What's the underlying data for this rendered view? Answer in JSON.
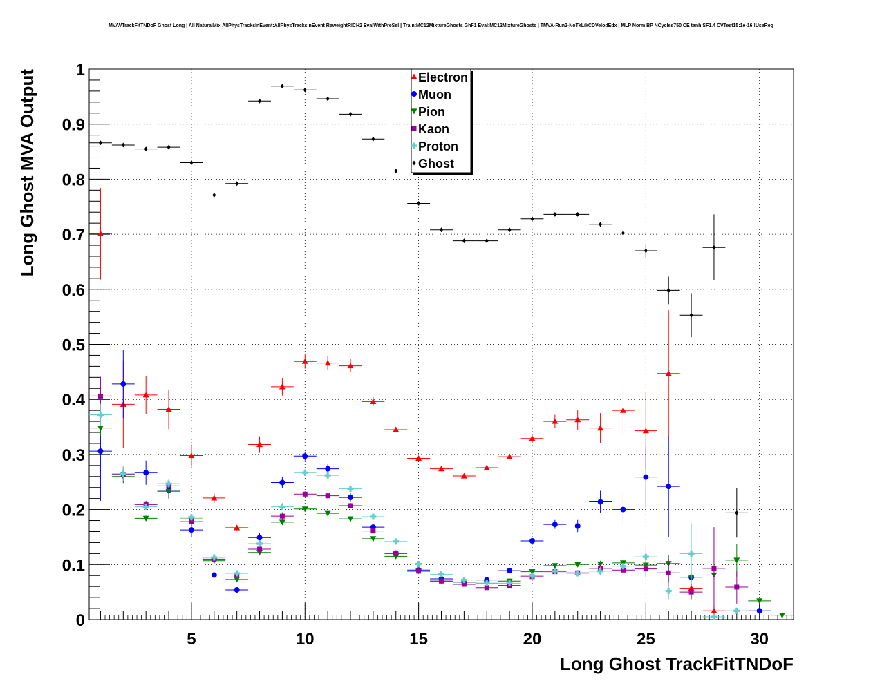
{
  "chart_data": {
    "type": "scatter",
    "title": "MVAVTrackFitTNDoF Ghost Long | All NaturalMix AllPhysTracksInEvent:AllPhysTracksInEvent ReweightRICH2 EvalWithPreSel | Train:MC12MixtureGhosts GhF1 Eval:MC12MixtureGhosts | TMVA-Run2-NoTkLikCDVelodEdx | MLP Norm BP NCycles750 CE tanh SF1.4 CVTest15:1e-16 !UseReg",
    "xlabel": "Long Ghost TrackFitTNDoF",
    "ylabel": "Long Ghost MVA Output",
    "xlim": [
      0.5,
      31.5
    ],
    "ylim": [
      0,
      1
    ],
    "xticks": [
      5,
      10,
      15,
      20,
      25,
      30
    ],
    "yticks": [
      0,
      0.1,
      0.2,
      0.3,
      0.4,
      0.5,
      0.6,
      0.7,
      0.8,
      0.9,
      1
    ],
    "ytick_labels": [
      "0",
      "0.1",
      "0.2",
      "0.3",
      "0.4",
      "0.5",
      "0.6",
      "0.7",
      "0.8",
      "0.9",
      "1"
    ],
    "xtick_labels": [
      "5",
      "10",
      "15",
      "20",
      "25",
      "30"
    ],
    "grid": true,
    "legend_position": "top-center",
    "series": [
      {
        "name": "Electron",
        "color": "#ff0000",
        "marker": "triangle-up",
        "x": [
          1,
          2,
          3,
          4,
          5,
          6,
          7,
          8,
          9,
          10,
          11,
          12,
          13,
          14,
          15,
          16,
          17,
          18,
          19,
          20,
          21,
          22,
          23,
          24,
          25,
          26,
          27,
          28
        ],
        "y": [
          0.701,
          0.391,
          0.408,
          0.382,
          0.298,
          0.221,
          0.167,
          0.318,
          0.423,
          0.469,
          0.466,
          0.461,
          0.396,
          0.345,
          0.293,
          0.274,
          0.261,
          0.276,
          0.296,
          0.329,
          0.36,
          0.363,
          0.348,
          0.38,
          0.343,
          0.447,
          0.057,
          0.016
        ],
        "err": [
          0.083,
          0.08,
          0.035,
          0.036,
          0.02,
          0.009,
          0.005,
          0.015,
          0.016,
          0.013,
          0.013,
          0.012,
          0.008,
          0.005,
          0.003,
          0.003,
          0.003,
          0.003,
          0.004,
          0.007,
          0.012,
          0.018,
          0.027,
          0.045,
          0.07,
          0.115,
          0.02,
          0.01
        ]
      },
      {
        "name": "Muon",
        "color": "#0000ff",
        "marker": "circle",
        "x": [
          1,
          2,
          3,
          4,
          5,
          6,
          7,
          8,
          9,
          10,
          11,
          12,
          13,
          14,
          15,
          16,
          17,
          18,
          19,
          20,
          21,
          22,
          23,
          24,
          25,
          26,
          27,
          30
        ],
        "y": [
          0.306,
          0.428,
          0.267,
          0.235,
          0.163,
          0.081,
          0.054,
          0.149,
          0.249,
          0.297,
          0.274,
          0.222,
          0.168,
          0.121,
          0.09,
          0.074,
          0.068,
          0.072,
          0.089,
          0.143,
          0.173,
          0.17,
          0.214,
          0.2,
          0.259,
          0.242,
          0.077,
          0.016
        ],
        "err": [
          0.09,
          0.062,
          0.022,
          0.015,
          0.012,
          0.003,
          0.003,
          0.008,
          0.01,
          0.008,
          0.008,
          0.008,
          0.005,
          0.003,
          0.003,
          0.002,
          0.002,
          0.002,
          0.003,
          0.005,
          0.008,
          0.011,
          0.02,
          0.03,
          0.055,
          0.092,
          0.0,
          0.0
        ]
      },
      {
        "name": "Pion",
        "color": "#008000",
        "marker": "triangle-down",
        "x": [
          1,
          2,
          3,
          4,
          5,
          6,
          7,
          8,
          9,
          10,
          11,
          12,
          13,
          14,
          15,
          16,
          17,
          18,
          19,
          20,
          21,
          22,
          23,
          24,
          25,
          26,
          27,
          28,
          29,
          30,
          31
        ],
        "y": [
          0.348,
          0.26,
          0.184,
          0.233,
          0.183,
          0.107,
          0.073,
          0.122,
          0.177,
          0.201,
          0.193,
          0.183,
          0.147,
          0.115,
          0.088,
          0.07,
          0.068,
          0.066,
          0.07,
          0.087,
          0.098,
          0.1,
          0.101,
          0.103,
          0.099,
          0.102,
          0.077,
          0.081,
          0.108,
          0.034,
          0.008
        ],
        "err": [
          0.015,
          0.012,
          0.005,
          0.008,
          0.005,
          0.003,
          0.002,
          0.005,
          0.005,
          0.004,
          0.004,
          0.004,
          0.003,
          0.002,
          0.002,
          0.001,
          0.001,
          0.001,
          0.002,
          0.002,
          0.003,
          0.004,
          0.006,
          0.01,
          0.012,
          0.015,
          0.01,
          0.01,
          0.03,
          0.0,
          0.0
        ]
      },
      {
        "name": "Kaon",
        "color": "#990099",
        "marker": "square",
        "x": [
          1,
          2,
          3,
          4,
          5,
          6,
          7,
          8,
          9,
          10,
          11,
          12,
          13,
          14,
          15,
          16,
          17,
          18,
          19,
          20,
          21,
          22,
          23,
          24,
          25,
          26,
          27,
          28,
          29
        ],
        "y": [
          0.406,
          0.264,
          0.209,
          0.243,
          0.178,
          0.11,
          0.081,
          0.128,
          0.188,
          0.228,
          0.225,
          0.207,
          0.161,
          0.12,
          0.088,
          0.07,
          0.064,
          0.058,
          0.062,
          0.078,
          0.087,
          0.085,
          0.093,
          0.09,
          0.092,
          0.085,
          0.05,
          0.093,
          0.059
        ],
        "err": [
          0.035,
          0.014,
          0.006,
          0.008,
          0.006,
          0.003,
          0.003,
          0.006,
          0.007,
          0.005,
          0.005,
          0.005,
          0.004,
          0.003,
          0.002,
          0.002,
          0.002,
          0.002,
          0.002,
          0.003,
          0.004,
          0.005,
          0.008,
          0.012,
          0.015,
          0.025,
          0.01,
          0.075,
          0.03
        ]
      },
      {
        "name": "Proton",
        "color": "#66cccc",
        "marker": "cross",
        "x": [
          1,
          2,
          3,
          4,
          5,
          6,
          7,
          8,
          9,
          10,
          11,
          12,
          13,
          14,
          15,
          16,
          17,
          18,
          19,
          20,
          21,
          22,
          23,
          24,
          25,
          26,
          27,
          28,
          29
        ],
        "y": [
          0.372,
          0.265,
          0.205,
          0.247,
          0.186,
          0.113,
          0.084,
          0.138,
          0.205,
          0.267,
          0.262,
          0.238,
          0.187,
          0.142,
          0.101,
          0.082,
          0.072,
          0.066,
          0.066,
          0.08,
          0.088,
          0.084,
          0.088,
          0.097,
          0.114,
          0.052,
          0.12,
          0.005,
          0.016
        ],
        "err": [
          0.02,
          0.013,
          0.006,
          0.008,
          0.006,
          0.003,
          0.003,
          0.006,
          0.007,
          0.006,
          0.005,
          0.005,
          0.004,
          0.003,
          0.003,
          0.002,
          0.002,
          0.002,
          0.002,
          0.003,
          0.004,
          0.005,
          0.008,
          0.01,
          0.015,
          0.015,
          0.055,
          0.0,
          0.0
        ]
      },
      {
        "name": "Ghost",
        "color": "#000000",
        "marker": "diamond",
        "x": [
          1,
          2,
          3,
          4,
          5,
          6,
          7,
          8,
          9,
          10,
          11,
          12,
          13,
          14,
          15,
          16,
          17,
          18,
          19,
          20,
          21,
          22,
          23,
          24,
          25,
          26,
          27,
          28,
          29
        ],
        "y": [
          0.866,
          0.862,
          0.855,
          0.858,
          0.83,
          0.771,
          0.792,
          0.942,
          0.969,
          0.962,
          0.946,
          0.918,
          0.873,
          0.815,
          0.756,
          0.708,
          0.688,
          0.688,
          0.708,
          0.728,
          0.736,
          0.736,
          0.718,
          0.702,
          0.67,
          0.598,
          0.553,
          0.676,
          0.194
        ],
        "err": [
          0.003,
          0.002,
          0.002,
          0.002,
          0.002,
          0.002,
          0.002,
          0.002,
          0.001,
          0.001,
          0.001,
          0.001,
          0.002,
          0.002,
          0.002,
          0.002,
          0.002,
          0.002,
          0.002,
          0.002,
          0.003,
          0.003,
          0.004,
          0.007,
          0.012,
          0.025,
          0.04,
          0.06,
          0.045
        ]
      }
    ]
  }
}
